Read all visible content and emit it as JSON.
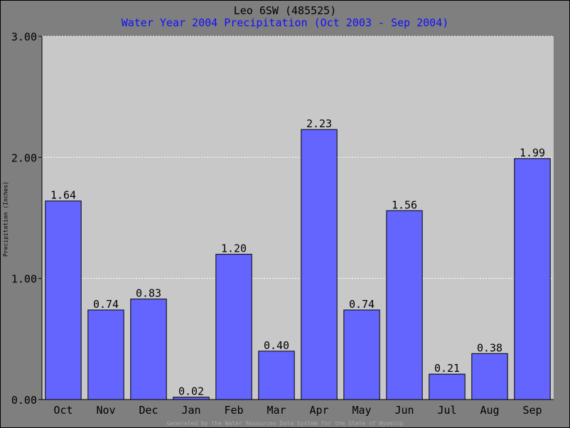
{
  "chart_data": {
    "type": "bar",
    "title": "Leo 6SW (485525)",
    "subtitle": "Water Year 2004 Precipitation (Oct 2003 - Sep 2004)",
    "ylabel": "Precipitation (Inches)",
    "xlabel": "",
    "categories": [
      "Oct",
      "Nov",
      "Dec",
      "Jan",
      "Feb",
      "Mar",
      "Apr",
      "May",
      "Jun",
      "Jul",
      "Aug",
      "Sep"
    ],
    "values": [
      1.64,
      0.74,
      0.83,
      0.02,
      1.2,
      0.4,
      2.23,
      0.74,
      1.56,
      0.21,
      0.38,
      1.99
    ],
    "value_labels": [
      "1.64",
      "0.74",
      "0.83",
      "0.02",
      "1.20",
      "0.40",
      "2.23",
      "0.74",
      "1.56",
      "0.21",
      "0.38",
      "1.99"
    ],
    "ylim": [
      0,
      3.0
    ],
    "yticks": [
      0,
      1,
      2,
      3
    ],
    "ytick_labels": [
      "0.00",
      "1.00",
      "2.00",
      "3.00"
    ],
    "grid": true,
    "colors": {
      "bar": "#6464ff",
      "plot_background": "#c8c8c8",
      "page_background": "#7f7f7f",
      "subtitle": "#1010ff"
    }
  },
  "footer": "Generated by the Water Resources Data System for the State of Wyoming"
}
